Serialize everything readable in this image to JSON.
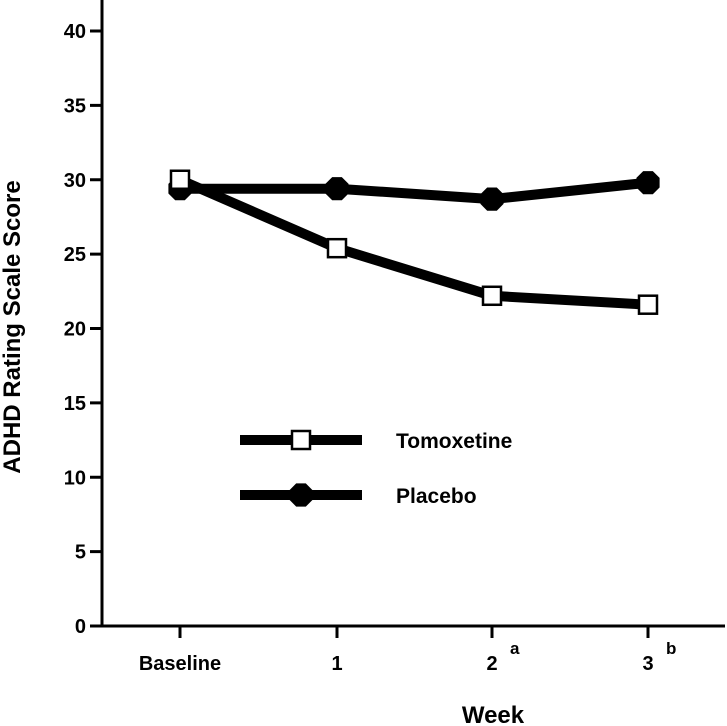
{
  "chart_data": {
    "type": "line",
    "title": "",
    "xlabel": "Week",
    "ylabel": "ADHD Rating Scale Score",
    "categories": [
      "Baseline",
      "1",
      "2",
      "3"
    ],
    "category_superscripts": [
      "",
      "",
      "a",
      "b"
    ],
    "ylim": [
      0,
      40
    ],
    "yticks": [
      0,
      5,
      10,
      15,
      20,
      25,
      30,
      35,
      40
    ],
    "grid": false,
    "legend_position": "center-left",
    "series": [
      {
        "name": "Tomoxetine",
        "marker": "open-square",
        "values": [
          30.0,
          25.4,
          22.2,
          21.6
        ]
      },
      {
        "name": "Placebo",
        "marker": "filled-octagon",
        "values": [
          29.4,
          29.4,
          28.7,
          29.8
        ]
      }
    ]
  }
}
